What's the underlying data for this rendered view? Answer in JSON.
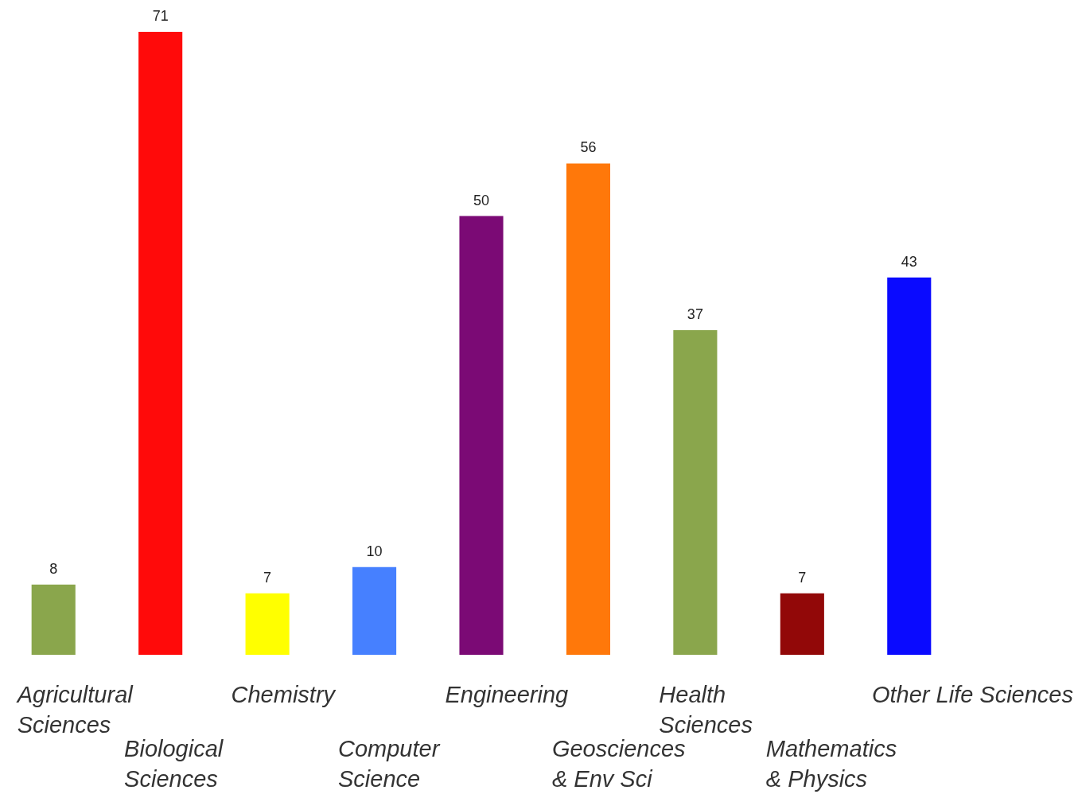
{
  "chart_data": {
    "type": "bar",
    "categories": [
      "Agricultural\nSciences",
      "Biological\nSciences",
      "Chemistry",
      "Computer\nScience",
      "Engineering",
      "Geosciences\n& Env Sci",
      "Health\nSciences",
      "Mathematics\n& Physics",
      "Other Life Sciences"
    ],
    "values": [
      8,
      71,
      7,
      10,
      50,
      56,
      37,
      7,
      43
    ],
    "colors": [
      "#8aa64c",
      "#ff0a0a",
      "#ffff00",
      "#4680ff",
      "#7b0a75",
      "#ff780a",
      "#8aa64c",
      "#920808",
      "#0a0aff"
    ],
    "data_labels": true,
    "legend": false,
    "tick_labels": false
  }
}
